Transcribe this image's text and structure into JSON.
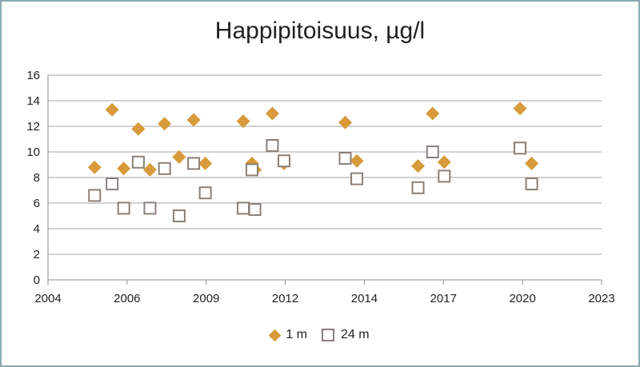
{
  "chart_data": {
    "type": "scatter",
    "title": "Happipitoisuus, µg/l",
    "xlabel": "",
    "ylabel": "",
    "xlim": [
      2004,
      2023
    ],
    "ylim": [
      0,
      16
    ],
    "x_ticks": [
      "2004",
      "2006",
      "2009",
      "2012",
      "2014",
      "2017",
      "2020",
      "2023"
    ],
    "y_ticks": [
      "0",
      "2",
      "4",
      "6",
      "8",
      "10",
      "12",
      "14",
      "16"
    ],
    "grid": "horizontal",
    "legend": "bottom",
    "series": [
      {
        "name": "1 m",
        "marker": "diamond",
        "color": "#d89a3a",
        "points": [
          [
            2005.6,
            8.8
          ],
          [
            2006.2,
            13.3
          ],
          [
            2006.6,
            8.7
          ],
          [
            2007.1,
            11.8
          ],
          [
            2007.5,
            8.6
          ],
          [
            2008.0,
            12.2
          ],
          [
            2008.5,
            9.6
          ],
          [
            2009.0,
            12.5
          ],
          [
            2009.4,
            9.1
          ],
          [
            2010.7,
            12.4
          ],
          [
            2011.0,
            9.1
          ],
          [
            2011.1,
            8.6
          ],
          [
            2011.7,
            13.0
          ],
          [
            2012.1,
            9.1
          ],
          [
            2014.2,
            12.3
          ],
          [
            2014.6,
            9.3
          ],
          [
            2016.7,
            8.9
          ],
          [
            2017.2,
            13.0
          ],
          [
            2017.6,
            9.2
          ],
          [
            2020.2,
            13.4
          ],
          [
            2020.6,
            9.1
          ]
        ]
      },
      {
        "name": "24 m",
        "marker": "square",
        "color": "#8b8078",
        "points": [
          [
            2005.6,
            6.6
          ],
          [
            2006.2,
            7.5
          ],
          [
            2006.6,
            5.6
          ],
          [
            2007.1,
            9.2
          ],
          [
            2007.5,
            5.6
          ],
          [
            2008.0,
            8.7
          ],
          [
            2008.5,
            5.0
          ],
          [
            2009.0,
            9.1
          ],
          [
            2009.4,
            6.8
          ],
          [
            2010.7,
            5.6
          ],
          [
            2011.0,
            8.6
          ],
          [
            2011.1,
            5.5
          ],
          [
            2011.7,
            10.5
          ],
          [
            2012.1,
            9.3
          ],
          [
            2014.2,
            9.5
          ],
          [
            2014.6,
            7.9
          ],
          [
            2016.7,
            7.2
          ],
          [
            2017.2,
            10.0
          ],
          [
            2017.6,
            8.1
          ],
          [
            2020.2,
            10.3
          ],
          [
            2020.6,
            7.5
          ]
        ]
      }
    ]
  }
}
